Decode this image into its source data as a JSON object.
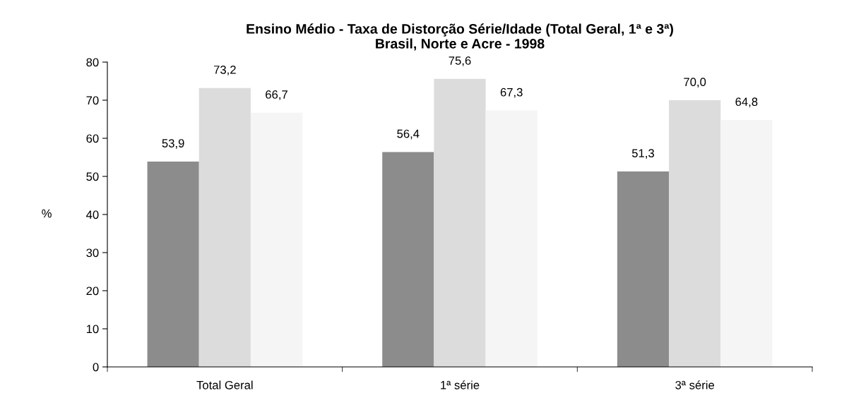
{
  "chart_data": {
    "type": "bar",
    "title": "Ensino Médio - Taxa de Distorção Série/Idade (Total Geral, 1ª e 3ª)\nBrasil, Norte e Acre - 1998",
    "ylabel": "%",
    "categories": [
      "Total Geral",
      "1ª série",
      "3ª série"
    ],
    "series": [
      {
        "color": "#8c8c8c",
        "values": [
          53.9,
          56.4,
          51.3
        ],
        "value_labels": [
          "53,9",
          "56,4",
          "51,3"
        ]
      },
      {
        "color": "#dcdcdc",
        "values": [
          73.2,
          75.6,
          70.0
        ],
        "value_labels": [
          "73,2",
          "75,6",
          "70,0"
        ]
      },
      {
        "color": "#f5f5f5",
        "values": [
          66.7,
          67.3,
          64.8
        ],
        "value_labels": [
          "66,7",
          "67,3",
          "64,8"
        ]
      }
    ],
    "ylim": [
      0,
      80
    ],
    "yticks": [
      0,
      10,
      20,
      30,
      40,
      50,
      60,
      70,
      80
    ],
    "grid": false,
    "legend": false
  }
}
